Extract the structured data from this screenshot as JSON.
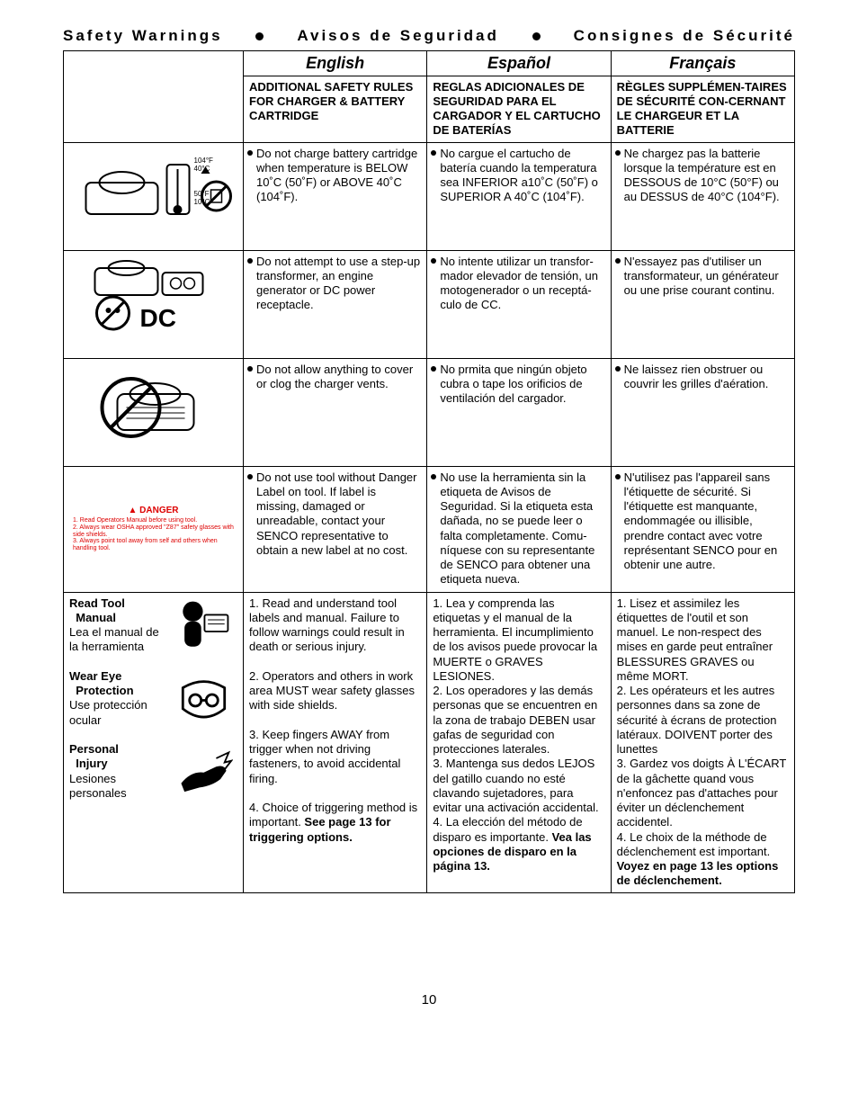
{
  "header": {
    "en": "Safety Warnings",
    "es": "Avisos de Seguridad",
    "fr": "Consignes de Sécurité"
  },
  "columns": {
    "lang_en": "English",
    "lang_es": "Español",
    "lang_fr": "Français"
  },
  "section_titles": {
    "en": "ADDITIONAL SAFETY RULES FOR CHARGER & BATTERY CARTRIDGE",
    "es": "REGLAS ADICIONALES DE SEGURIDAD PARA EL CARGADOR Y EL CARTUCHO DE BATERÍAS",
    "fr": "RÈGLES SUPPLÉMEN-TAIRES DE SÉCURITÉ CON-CERNANT LE CHARGEUR ET LA BATTERIE"
  },
  "rows": [
    {
      "icon": "temp",
      "en": "Do not charge battery cartridge when temperature is BELOW 10˚C (50˚F) or ABOVE 40˚C (104˚F).",
      "es": "No cargue el cartucho de batería cuando la temperatura sea INFERIOR a10˚C (50˚F) o SUPERIOR A 40˚C (104˚F).",
      "fr": "Ne chargez pas la batterie lorsque la température est en DESSOUS de 10°C (50°F) ou au DESSUS de 40°C (104°F)."
    },
    {
      "icon": "dc",
      "en": "Do not attempt to use a step-up transformer, an engine generator or DC power receptacle.",
      "es": "No intente utilizar un transfor-mador elevador de tensión, un motogenerador o un receptá-culo de CC.",
      "fr": "N'essayez pas d'utiliser un transformateur, un générateur ou une prise courant continu."
    },
    {
      "icon": "vent",
      "en": "Do not allow anything to cover or clog the charger vents.",
      "es": "No prmita que ningún objeto cubra o tape los orificios de ventilación del cargador.",
      "fr": "Ne laissez rien obstruer ou couvrir les grilles d'aération."
    },
    {
      "icon": "danger",
      "en": "Do not use tool without Danger Label on tool. If label is missing, damaged or unreadable, contact your SENCO representative to obtain a new label at no cost.",
      "es": "No use la herramienta sin la etiqueta de Avisos de Seguridad. Si la etiqueta esta dañada, no se puede leer o falta completamente. Comu-níquese con su representante de SENCO para obtener una etiqueta nueva.",
      "fr": "N'utilisez pas l'appareil sans l'étiquette de sécurité. Si l'étiquette est manquante, endommagée ou illisible, prendre contact avec votre représentant SENCO pour en obtenir une autre."
    }
  ],
  "danger_block": {
    "title": "DANGER",
    "line1": "1.  Read Operators Manual before using tool.",
    "line2": "2.  Always wear OSHA approved \"Z87\" safety glasses with side shields.",
    "line3": "3.  Always point tool away from self and others when handling tool."
  },
  "big_row": {
    "left": {
      "l1a": "Read Tool",
      "l1b": "Manual",
      "l1c": "Lea el manual de la herramienta",
      "l2a": "Wear Eye",
      "l2b": "Protection",
      "l2c": "Use protección ocular",
      "l3a": "Personal",
      "l3b": "Injury",
      "l3c": "Lesiones personales"
    },
    "en": "1. Read and understand tool labels and manual. Failure to follow warnings could result in death or serious injury.\n\n2. Operators and others in work area MUST wear safety glasses with side shields.\n\n3. Keep fingers AWAY from trigger when not driving fasteners, to avoid accidental firing.\n\n4. Choice of triggering method is important. See page 13 for triggering options.",
    "es": "1. Lea y comprenda las etiquetas y el manual de la herramienta. El incumplimiento de los avisos puede provocar la MUERTE o GRAVES LESIONES.\n2. Los operadores y las demás personas que se encuentren en la zona de trabajo DEBEN usar gafas de seguridad con protecciones laterales.\n3. Mantenga sus dedos LEJOS del gatillo cuando no esté clavando sujetadores, para evitar una activación accidental.\n4. La elección del método de disparo es importante. Vea las opciones de disparo en la página 13.",
    "fr": "1. Lisez et assimilez les étiquettes de l'outil et son manuel. Le non-respect des mises en garde peut entraîner BLESSURES GRAVES ou même MORT.\n2. Les opérateurs et les autres personnes dans sa zone de sécurité à écrans de protection latéraux. DOIVENT porter des lunettes\n3. Gardez vos doigts À L'ÉCART de la gâchette quand vous n'enfoncez pas d'attaches pour éviter un déclenchement accidentel.\n4. Le choix de la méthode de déclenchement est important. Voyez en page 13 les options de déclenchement."
  },
  "big_row_html": {
    "en": "1. Read and understand tool labels and manual. Failure to follow warnings could result in death or serious injury.<br><br>2. Operators and others in work area MUST wear safety glasses with side shields.<br><br>3. Keep fingers AWAY from trigger when not driving fasteners, to avoid accidental firing.<br><br>4. Choice of triggering method is important. <b>See page 13 for triggering options.</b>",
    "es": "1. Lea y comprenda las etiquetas y el manual de la herramienta. El incumplimiento de los avisos puede provocar la MUERTE o GRAVES LESIONES.<br>2. Los operadores y las demás personas que se encuentren en la zona de trabajo DEBEN usar gafas de seguridad con protecciones laterales.<br>3. Mantenga sus dedos LEJOS del gatillo cuando no esté clavando sujetadores, para evitar una activación accidental.<br>4. La elección del método de disparo es importante. <b>Vea las opciones de disparo en la página 13.</b>",
    "fr": "1. Lisez et assimilez les étiquettes de l'outil et son manuel. Le non-respect des mises en garde peut entraîner BLESSURES GRAVES ou même MORT.<br>2. Les opérateurs et les autres personnes dans sa zone de sécurité à écrans de protection latéraux. DOIVENT porter des lunettes<br>3. Gardez vos doigts À L'ÉCART de la gâchette quand vous n'enfoncez pas d'attaches pour éviter un déclenchement accidentel.<br>4. Le choix de la méthode de déclenchement est important. <b>Voyez en page 13 les options de déclenchement.</b>"
  },
  "page_number": "10",
  "colors": {
    "danger_red": "#cc0000",
    "text": "#000000",
    "border": "#000000"
  }
}
